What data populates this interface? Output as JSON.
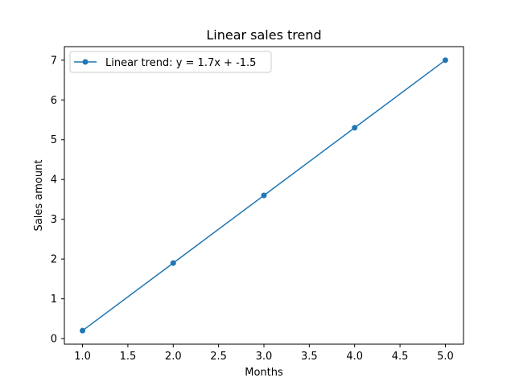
{
  "chart_data": {
    "type": "line",
    "title": "Linear sales trend",
    "xlabel": "Months",
    "ylabel": "Sales amount",
    "xlim": [
      0.8,
      5.2
    ],
    "ylim": [
      -0.14,
      7.34
    ],
    "x_ticks": [
      1.0,
      1.5,
      2.0,
      2.5,
      3.0,
      3.5,
      4.0,
      4.5,
      5.0
    ],
    "x_tick_labels": [
      "1.0",
      "1.5",
      "2.0",
      "2.5",
      "3.0",
      "3.5",
      "4.0",
      "4.5",
      "5.0"
    ],
    "y_ticks": [
      0,
      1,
      2,
      3,
      4,
      5,
      6,
      7
    ],
    "y_tick_labels": [
      "0",
      "1",
      "2",
      "3",
      "4",
      "5",
      "6",
      "7"
    ],
    "grid": false,
    "legend_position": "top-left",
    "series": [
      {
        "name": "Linear trend: y = 1.7x + -1.5",
        "color": "#1f77b4",
        "marker": "circle",
        "x": [
          1,
          2,
          3,
          4,
          5
        ],
        "y": [
          0.2,
          1.9,
          3.6,
          5.3,
          7.0
        ]
      }
    ]
  }
}
